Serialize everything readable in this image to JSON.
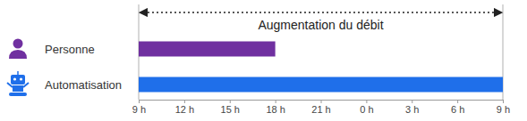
{
  "chart_data": {
    "type": "bar",
    "orientation": "horizontal",
    "annotation": "Augmentation du débit",
    "categories": [
      "Personne",
      "Automatisation"
    ],
    "values": [
      18,
      33
    ],
    "colors": [
      "#7030a0",
      "#1f6fea"
    ],
    "xlim": [
      9,
      33
    ],
    "xticks": [
      {
        "value": 9,
        "label": "9 h"
      },
      {
        "value": 12,
        "label": "12 h"
      },
      {
        "value": 15,
        "label": "15 h"
      },
      {
        "value": 18,
        "label": "18 h"
      },
      {
        "value": 21,
        "label": "21 h"
      },
      {
        "value": 24,
        "label": "0 h"
      },
      {
        "value": 27,
        "label": "3 h"
      },
      {
        "value": 30,
        "label": "6 h"
      },
      {
        "value": 33,
        "label": "9 h"
      }
    ]
  }
}
